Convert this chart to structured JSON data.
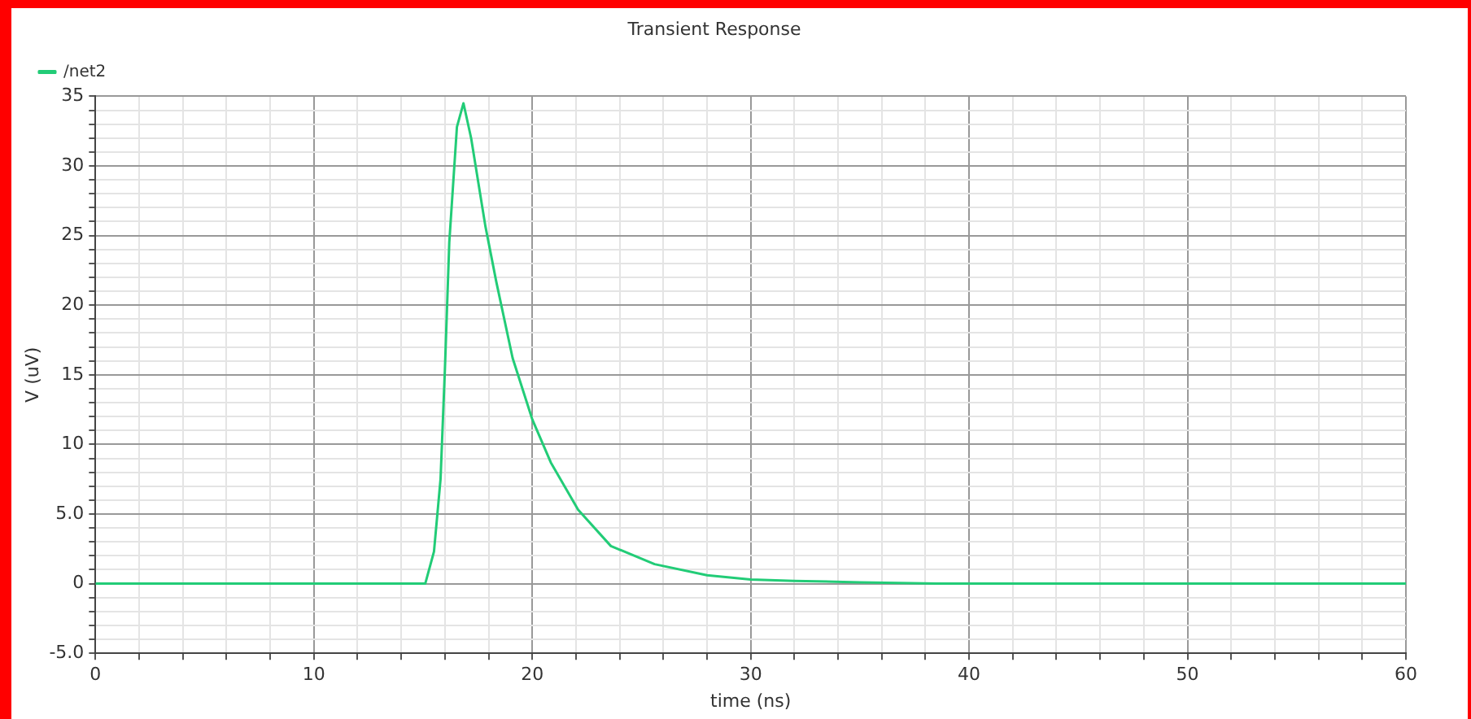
{
  "chart_data": {
    "type": "line",
    "title": "Transient Response",
    "xlabel": "time (ns)",
    "ylabel": "V (uV)",
    "legend": "top left",
    "grid": true,
    "marker": "none",
    "line_style": "solid",
    "xlim": [
      0,
      60
    ],
    "ylim": [
      -5,
      35
    ],
    "xticks": [
      0,
      {
        "value": 2,
        "label": null
      },
      {
        "value": 4,
        "label": null
      },
      {
        "value": 6,
        "label": null
      },
      {
        "value": 8,
        "label": null
      },
      10,
      {
        "value": 12,
        "label": null
      },
      {
        "value": 14,
        "label": null
      },
      {
        "value": 16,
        "label": null
      },
      {
        "value": 18,
        "label": null
      },
      20,
      {
        "value": 22,
        "label": null
      },
      {
        "value": 24,
        "label": null
      },
      {
        "value": 26,
        "label": null
      },
      {
        "value": 28,
        "label": null
      },
      30,
      {
        "value": 32,
        "label": null
      },
      {
        "value": 34,
        "label": null
      },
      {
        "value": 36,
        "label": null
      },
      {
        "value": 38,
        "label": null
      },
      40,
      {
        "value": 42,
        "label": null
      },
      {
        "value": 44,
        "label": null
      },
      {
        "value": 46,
        "label": null
      },
      {
        "value": 48,
        "label": null
      },
      50,
      {
        "value": 52,
        "label": null
      },
      {
        "value": 54,
        "label": null
      },
      {
        "value": 56,
        "label": null
      },
      {
        "value": 58,
        "label": null
      },
      60
    ],
    "yticks": [
      {
        "value": -5,
        "label": "-5.0"
      },
      {
        "value": -4,
        "label": null
      },
      {
        "value": -3,
        "label": null
      },
      {
        "value": -2,
        "label": null
      },
      {
        "value": -1,
        "label": null
      },
      0,
      {
        "value": 1,
        "label": null
      },
      {
        "value": 2,
        "label": null
      },
      {
        "value": 3,
        "label": null
      },
      {
        "value": 4,
        "label": null
      },
      {
        "value": 5,
        "label": "5.0"
      },
      {
        "value": 6,
        "label": null
      },
      {
        "value": 7,
        "label": null
      },
      {
        "value": 8,
        "label": null
      },
      {
        "value": 9,
        "label": null
      },
      10,
      {
        "value": 11,
        "label": null
      },
      {
        "value": 12,
        "label": null
      },
      {
        "value": 13,
        "label": null
      },
      {
        "value": 14,
        "label": null
      },
      15,
      {
        "value": 16,
        "label": null
      },
      {
        "value": 17,
        "label": null
      },
      {
        "value": 18,
        "label": null
      },
      {
        "value": 19,
        "label": null
      },
      20,
      {
        "value": 21,
        "label": null
      },
      {
        "value": 22,
        "label": null
      },
      {
        "value": 23,
        "label": null
      },
      {
        "value": 24,
        "label": null
      },
      25,
      {
        "value": 26,
        "label": null
      },
      {
        "value": 27,
        "label": null
      },
      {
        "value": 28,
        "label": null
      },
      {
        "value": 29,
        "label": null
      },
      30,
      {
        "value": 31,
        "label": null
      },
      {
        "value": 32,
        "label": null
      },
      {
        "value": 33,
        "label": null
      },
      {
        "value": 34,
        "label": null
      },
      35
    ],
    "series": [
      {
        "name": "/net2",
        "color": "#22cc77",
        "x": [
          0,
          15.1,
          15.5,
          15.8,
          16.0,
          16.2,
          16.55,
          16.85,
          17.2,
          17.85,
          18.35,
          19.1,
          20.0,
          20.85,
          22.1,
          23.6,
          25.6,
          28.0,
          30,
          32,
          35,
          38.5,
          60
        ],
        "values": [
          0,
          0,
          2.3,
          7.5,
          15.4,
          24.5,
          32.8,
          34.5,
          32,
          25.7,
          21.7,
          16.2,
          11.8,
          8.7,
          5.3,
          2.7,
          1.4,
          0.6,
          0.3,
          0.2,
          0.1,
          0,
          0
        ]
      }
    ]
  }
}
